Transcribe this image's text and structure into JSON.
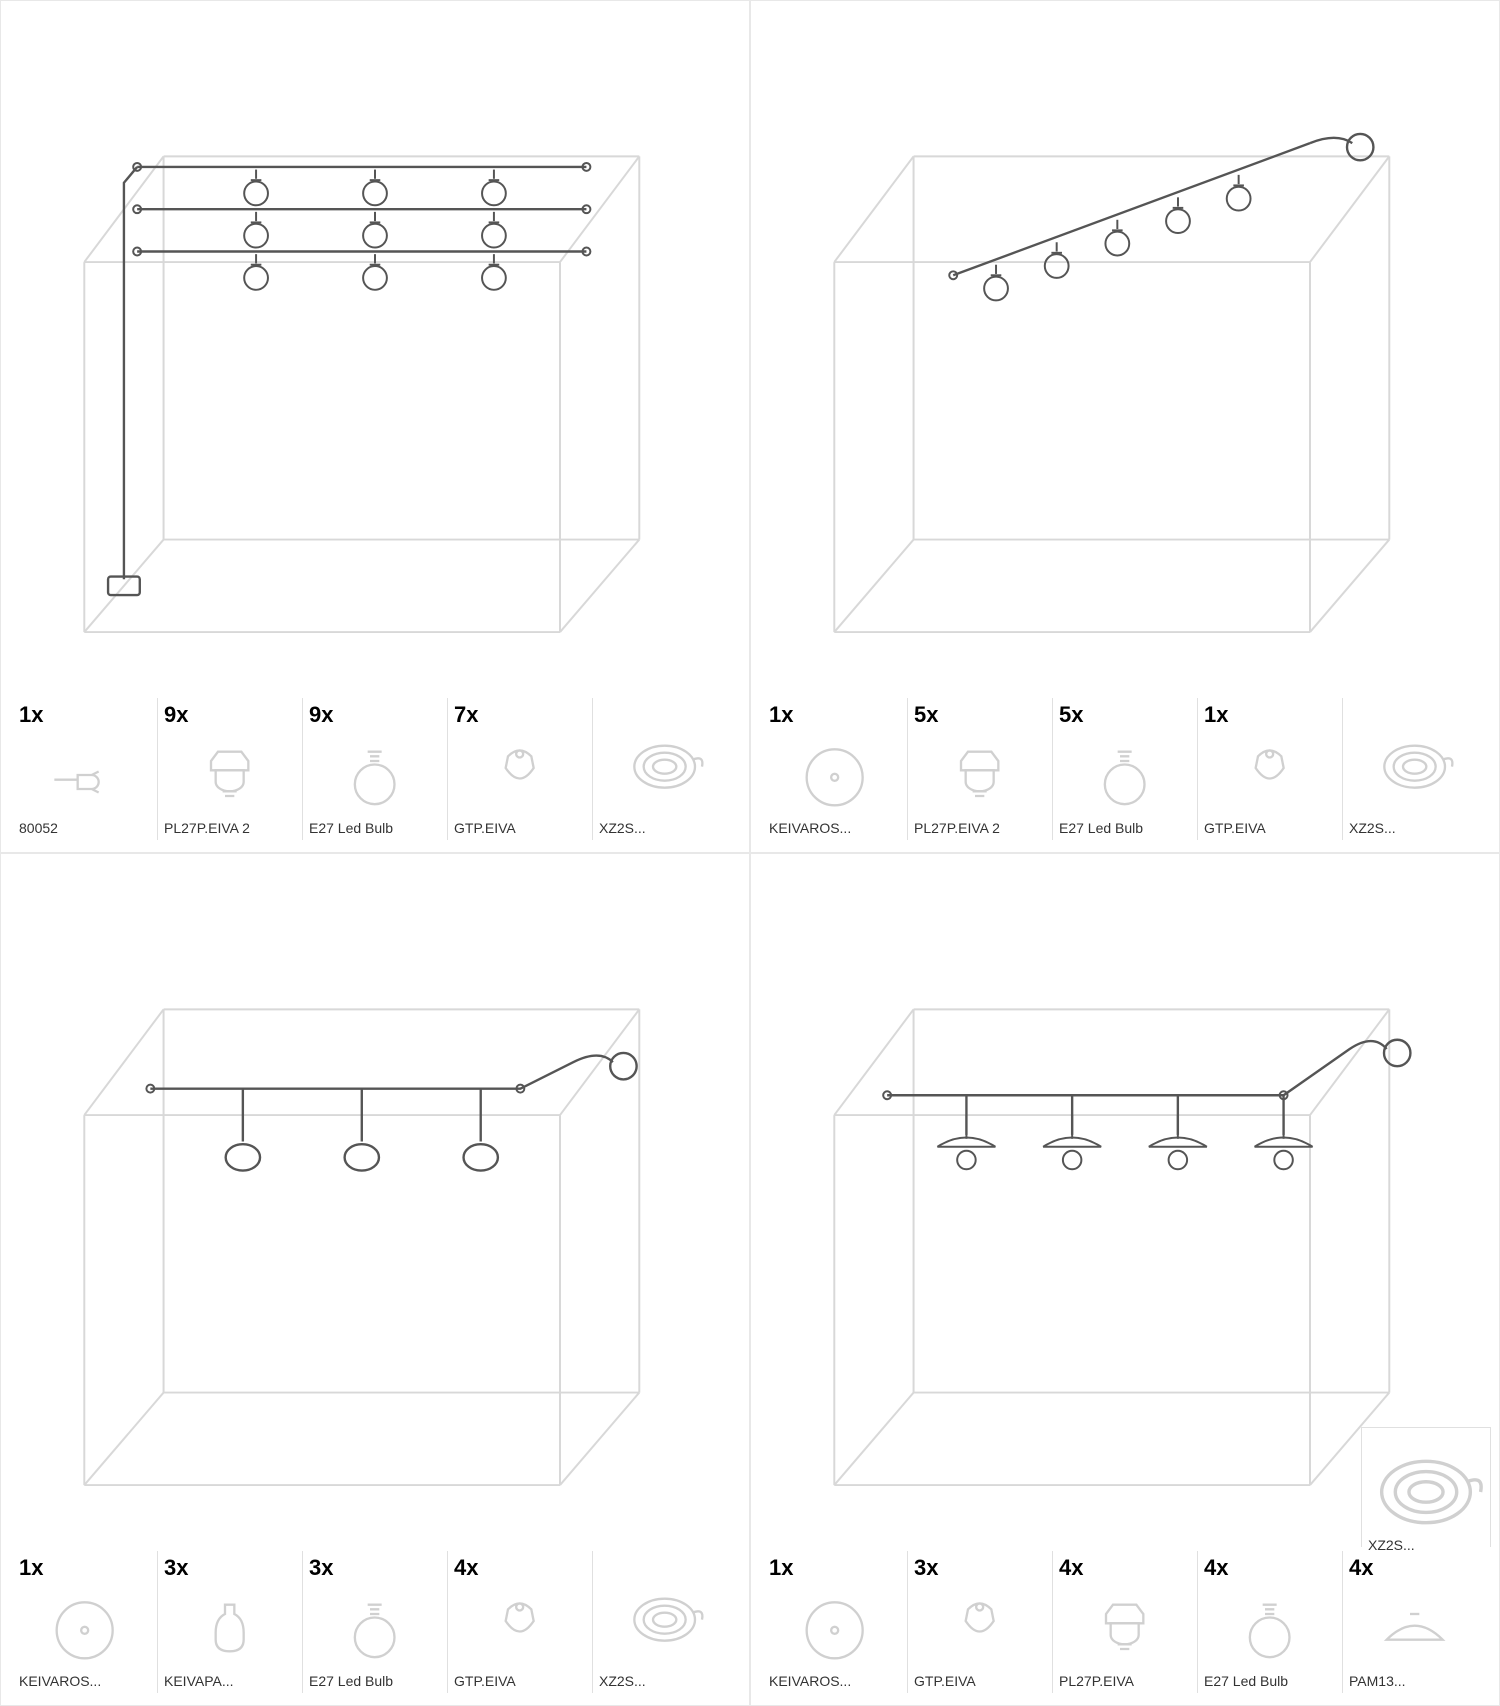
{
  "colors": {
    "stroke": "#555555",
    "cube": "#d8d8d8",
    "icon": "#d0d0d0",
    "text": "#000000"
  },
  "quadrants": [
    {
      "id": "top-left",
      "variant": "grid9",
      "parts": [
        {
          "qty": "1x",
          "icon": "plug",
          "label": "80052"
        },
        {
          "qty": "9x",
          "icon": "holder",
          "label": "PL27P.EIVA 2"
        },
        {
          "qty": "9x",
          "icon": "bulb",
          "label": "E27 Led Bulb"
        },
        {
          "qty": "7x",
          "icon": "hook",
          "label": "GTP.EIVA"
        },
        {
          "qty": "",
          "icon": "cable",
          "label": "XZ2S..."
        }
      ]
    },
    {
      "id": "top-right",
      "variant": "diag5",
      "parts": [
        {
          "qty": "1x",
          "icon": "rose",
          "label": "KEIVAROS..."
        },
        {
          "qty": "5x",
          "icon": "holder",
          "label": "PL27P.EIVA 2"
        },
        {
          "qty": "5x",
          "icon": "bulb",
          "label": "E27 Led Bulb"
        },
        {
          "qty": "1x",
          "icon": "hook",
          "label": "GTP.EIVA"
        },
        {
          "qty": "",
          "icon": "cable",
          "label": "XZ2S..."
        }
      ]
    },
    {
      "id": "bottom-left",
      "variant": "line3",
      "parts": [
        {
          "qty": "1x",
          "icon": "rose",
          "label": "KEIVAROS..."
        },
        {
          "qty": "3x",
          "icon": "bottle",
          "label": "KEIVAPA..."
        },
        {
          "qty": "3x",
          "icon": "bulb",
          "label": "E27 Led Bulb"
        },
        {
          "qty": "4x",
          "icon": "hook",
          "label": "GTP.EIVA"
        },
        {
          "qty": "",
          "icon": "cable",
          "label": "XZ2S..."
        }
      ]
    },
    {
      "id": "bottom-right",
      "variant": "line4shade",
      "extra": {
        "icon": "cable",
        "label": "XZ2S..."
      },
      "parts": [
        {
          "qty": "1x",
          "icon": "rose",
          "label": "KEIVAROS..."
        },
        {
          "qty": "3x",
          "icon": "hook",
          "label": "GTP.EIVA"
        },
        {
          "qty": "4x",
          "icon": "holder2",
          "label": "PL27P.EIVA"
        },
        {
          "qty": "4x",
          "icon": "bulb",
          "label": "E27 Led Bulb"
        },
        {
          "qty": "4x",
          "icon": "shade",
          "label": "PAM13..."
        }
      ]
    }
  ]
}
